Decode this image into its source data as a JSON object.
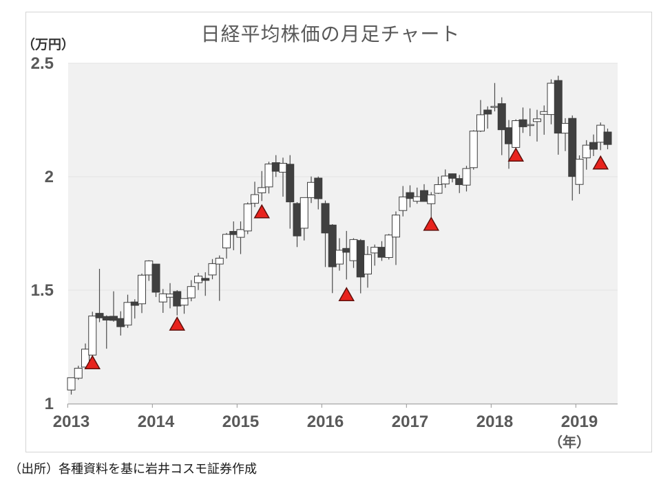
{
  "title": "日経平均株価の月足チャート",
  "source": "（出所）各種資料を基に岩井コスモ証券作成",
  "y_axis": {
    "unit_label": "（万円）",
    "tick_labels": [
      "2.5",
      "2",
      "1.5",
      "1"
    ]
  },
  "x_axis": {
    "unit_label": "（年）",
    "tick_labels": [
      "2013",
      "2014",
      "2015",
      "2016",
      "2017",
      "2018",
      "2019"
    ]
  },
  "colors": {
    "plot_bg": "#f1f1f1",
    "grid": "#e2e2e2",
    "axis_line": "#a6a6a6",
    "label": "#595959",
    "candle_stroke": "#3c3c3c",
    "up_fill": "#ffffff",
    "down_fill": "#404040",
    "wick": "#4a4a4a",
    "marker_fill": "#e8231d",
    "marker_stroke": "#5f100c"
  },
  "chart_data": {
    "type": "candlestick",
    "title": "日経平均株価の月足チャート",
    "ylabel": "（万円）",
    "xlabel": "（年）",
    "ylim": [
      1.0,
      2.5
    ],
    "yticks": [
      2.5,
      2.0,
      1.5,
      1.0
    ],
    "ytick_labels": [
      "2.5",
      "2",
      "1.5",
      "1"
    ],
    "start_month": "2013-01",
    "x_tick_years": [
      "2013",
      "2014",
      "2015",
      "2016",
      "2017",
      "2018",
      "2019"
    ],
    "grid": "horizontal-only",
    "legend": "none",
    "ohlc_unit": "10000_yen",
    "ohlc": [
      [
        1.06,
        1.114,
        1.04,
        1.114
      ],
      [
        1.112,
        1.167,
        1.105,
        1.156
      ],
      [
        1.161,
        1.265,
        1.154,
        1.24
      ],
      [
        1.214,
        1.405,
        1.181,
        1.386
      ],
      [
        1.398,
        1.594,
        1.359,
        1.378
      ],
      [
        1.384,
        1.389,
        1.242,
        1.368
      ],
      [
        1.385,
        1.495,
        1.361,
        1.367
      ],
      [
        1.375,
        1.407,
        1.3,
        1.339
      ],
      [
        1.346,
        1.48,
        1.334,
        1.446
      ],
      [
        1.448,
        1.46,
        1.375,
        1.433
      ],
      [
        1.44,
        1.573,
        1.399,
        1.566
      ],
      [
        1.567,
        1.632,
        1.541,
        1.629
      ],
      [
        1.615,
        1.616,
        1.47,
        1.491
      ],
      [
        1.448,
        1.505,
        1.4,
        1.484
      ],
      [
        1.469,
        1.531,
        1.42,
        1.483
      ],
      [
        1.494,
        1.5,
        1.389,
        1.43
      ],
      [
        1.434,
        1.464,
        1.396,
        1.463
      ],
      [
        1.466,
        1.544,
        1.451,
        1.516
      ],
      [
        1.533,
        1.576,
        1.501,
        1.562
      ],
      [
        1.552,
        1.579,
        1.475,
        1.543
      ],
      [
        1.567,
        1.637,
        1.548,
        1.617
      ],
      [
        1.615,
        1.653,
        1.453,
        1.641
      ],
      [
        1.686,
        1.752,
        1.639,
        1.746
      ],
      [
        1.759,
        1.803,
        1.676,
        1.745
      ],
      [
        1.733,
        1.803,
        1.659,
        1.767
      ],
      [
        1.761,
        1.887,
        1.747,
        1.88
      ],
      [
        1.883,
        1.978,
        1.866,
        1.921
      ],
      [
        1.929,
        2.025,
        1.893,
        1.952
      ],
      [
        1.955,
        2.066,
        1.926,
        2.056
      ],
      [
        2.062,
        2.095,
        1.999,
        2.024
      ],
      [
        2.02,
        2.084,
        1.912,
        2.059
      ],
      [
        2.055,
        2.095,
        1.771,
        1.889
      ],
      [
        1.882,
        1.888,
        1.69,
        1.739
      ],
      [
        1.773,
        1.903,
        1.719,
        1.908
      ],
      [
        1.908,
        2.001,
        1.884,
        1.975
      ],
      [
        1.994,
        2.001,
        1.856,
        1.903
      ],
      [
        1.882,
        1.895,
        1.602,
        1.752
      ],
      [
        1.787,
        1.791,
        1.487,
        1.603
      ],
      [
        1.615,
        1.729,
        1.586,
        1.676
      ],
      [
        1.684,
        1.761,
        1.547,
        1.667
      ],
      [
        1.63,
        1.729,
        1.598,
        1.723
      ],
      [
        1.719,
        1.725,
        1.486,
        1.558
      ],
      [
        1.571,
        1.694,
        1.511,
        1.657
      ],
      [
        1.664,
        1.701,
        1.608,
        1.689
      ],
      [
        1.689,
        1.716,
        1.629,
        1.645
      ],
      [
        1.644,
        1.748,
        1.635,
        1.743
      ],
      [
        1.734,
        1.847,
        1.611,
        1.831
      ],
      [
        1.851,
        1.959,
        1.825,
        1.911
      ],
      [
        1.93,
        1.962,
        1.865,
        1.904
      ],
      [
        1.892,
        1.952,
        1.881,
        1.912
      ],
      [
        1.939,
        1.967,
        1.891,
        1.891
      ],
      [
        1.881,
        1.932,
        1.822,
        1.92
      ],
      [
        1.927,
        2.0,
        1.924,
        1.965
      ],
      [
        1.968,
        2.032,
        1.951,
        2.003
      ],
      [
        2.013,
        2.014,
        1.975,
        1.993
      ],
      [
        1.992,
        2.008,
        1.928,
        1.965
      ],
      [
        1.963,
        2.048,
        1.935,
        2.036
      ],
      [
        2.04,
        2.205,
        2.031,
        2.201
      ],
      [
        2.201,
        2.338,
        2.197,
        2.273
      ],
      [
        2.294,
        2.31,
        2.212,
        2.276
      ],
      [
        2.307,
        2.413,
        2.288,
        2.31
      ],
      [
        2.322,
        2.35,
        2.095,
        2.207
      ],
      [
        2.216,
        2.25,
        2.035,
        2.145
      ],
      [
        2.129,
        2.253,
        2.12,
        2.247
      ],
      [
        2.251,
        2.305,
        2.193,
        2.22
      ],
      [
        2.228,
        2.301,
        2.179,
        2.23
      ],
      [
        2.243,
        2.295,
        2.155,
        2.255
      ],
      [
        2.275,
        2.314,
        2.185,
        2.287
      ],
      [
        2.274,
        2.429,
        2.231,
        2.412
      ],
      [
        2.424,
        2.445,
        2.097,
        2.192
      ],
      [
        2.192,
        2.258,
        2.113,
        2.235
      ],
      [
        2.257,
        2.27,
        1.895,
        2.001
      ],
      [
        1.966,
        2.094,
        1.924,
        2.077
      ],
      [
        2.083,
        2.161,
        2.031,
        2.139
      ],
      [
        2.151,
        2.186,
        2.091,
        2.121
      ],
      [
        2.152,
        2.239,
        2.117,
        2.227
      ],
      [
        2.197,
        2.212,
        2.121,
        2.142
      ]
    ],
    "markers": [
      {
        "month": "2013-04",
        "value": 1.21,
        "shape": "red-triangle-up"
      },
      {
        "month": "2014-04",
        "value": 1.38,
        "shape": "red-triangle-up"
      },
      {
        "month": "2015-04",
        "value": 1.875,
        "shape": "red-triangle-up"
      },
      {
        "month": "2016-04",
        "value": 1.51,
        "shape": "red-triangle-up"
      },
      {
        "month": "2017-04",
        "value": 1.82,
        "shape": "red-triangle-up"
      },
      {
        "month": "2018-04",
        "value": 2.125,
        "shape": "red-triangle-up"
      },
      {
        "month": "2019-04",
        "value": 2.09,
        "shape": "red-triangle-up"
      }
    ]
  }
}
